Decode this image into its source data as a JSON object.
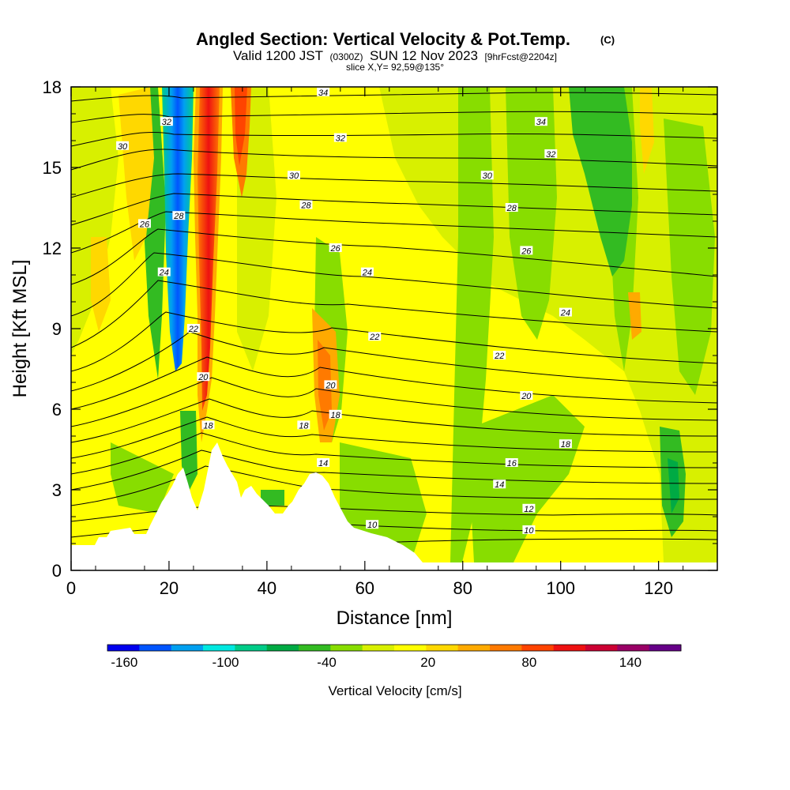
{
  "chart_data": {
    "type": "heatmap",
    "title": "Angled Section: Vertical Velocity & Pot.Temp.",
    "title_mark": "(C)",
    "subtitle_parts": [
      "Valid 1200 JST",
      "(0300Z)",
      "SUN 12 Nov 2023",
      "[9hrFcst@2204z]"
    ],
    "slice_text": "slice X,Y= 92,59@135°",
    "xlabel": "Distance [nm]",
    "ylabel": "Height [Kft MSL]",
    "xlim": [
      0,
      132
    ],
    "ylim": [
      0,
      18
    ],
    "x_ticks": [
      0,
      20,
      40,
      60,
      80,
      100,
      120
    ],
    "x_tick_labels": [
      "0",
      "20",
      "40",
      "60",
      "80",
      "100",
      "120"
    ],
    "y_ticks": [
      0,
      3,
      6,
      9,
      12,
      15,
      18
    ],
    "y_tick_labels": [
      "0",
      "3",
      "6",
      "9",
      "12",
      "15",
      "18"
    ],
    "colorbar": {
      "title": "Vertical Velocity [cm/s]",
      "min": -170,
      "max": 170,
      "labels": [
        "-160",
        "-100",
        "-40",
        "20",
        "80",
        "140"
      ],
      "label_values": [
        -160,
        -100,
        -40,
        20,
        80,
        140
      ],
      "colors": [
        "#0000ee",
        "#0055ff",
        "#00a0f0",
        "#00e8e0",
        "#00cc88",
        "#00aa44",
        "#33bb22",
        "#88dd00",
        "#d8f000",
        "#ffff00",
        "#ffd800",
        "#ffaa00",
        "#ff7a00",
        "#ff4400",
        "#ee1111",
        "#cc0033",
        "#990066",
        "#660088"
      ]
    },
    "contour_labels": [
      {
        "text": "34",
        "x": 51.5,
        "y": 17.8
      },
      {
        "text": "32",
        "x": 19.5,
        "y": 16.7
      },
      {
        "text": "30",
        "x": 10.5,
        "y": 15.8
      },
      {
        "text": "32",
        "x": 55.0,
        "y": 16.1
      },
      {
        "text": "34",
        "x": 96.0,
        "y": 16.7
      },
      {
        "text": "32",
        "x": 98.0,
        "y": 15.5
      },
      {
        "text": "30",
        "x": 45.5,
        "y": 14.7
      },
      {
        "text": "30",
        "x": 85.0,
        "y": 14.7
      },
      {
        "text": "28",
        "x": 48.0,
        "y": 13.6
      },
      {
        "text": "28",
        "x": 90.0,
        "y": 13.5
      },
      {
        "text": "28",
        "x": 22.0,
        "y": 13.2
      },
      {
        "text": "26",
        "x": 15.0,
        "y": 12.9
      },
      {
        "text": "26",
        "x": 54.0,
        "y": 12.0
      },
      {
        "text": "26",
        "x": 93.0,
        "y": 11.9
      },
      {
        "text": "24",
        "x": 19.0,
        "y": 11.1
      },
      {
        "text": "24",
        "x": 60.5,
        "y": 11.1
      },
      {
        "text": "24",
        "x": 101.0,
        "y": 9.6
      },
      {
        "text": "22",
        "x": 25.0,
        "y": 9.0
      },
      {
        "text": "22",
        "x": 62.0,
        "y": 8.7
      },
      {
        "text": "22",
        "x": 87.5,
        "y": 8.0
      },
      {
        "text": "20",
        "x": 27.0,
        "y": 7.2
      },
      {
        "text": "20",
        "x": 53.0,
        "y": 6.9
      },
      {
        "text": "20",
        "x": 93.0,
        "y": 6.5
      },
      {
        "text": "18",
        "x": 28.0,
        "y": 5.4
      },
      {
        "text": "18",
        "x": 47.5,
        "y": 5.4
      },
      {
        "text": "18",
        "x": 54.0,
        "y": 5.8
      },
      {
        "text": "18",
        "x": 101.0,
        "y": 4.7
      },
      {
        "text": "16",
        "x": 90.0,
        "y": 4.0
      },
      {
        "text": "14",
        "x": 51.5,
        "y": 4.0
      },
      {
        "text": "14",
        "x": 87.5,
        "y": 3.2
      },
      {
        "text": "12",
        "x": 93.5,
        "y": 2.3
      },
      {
        "text": "10",
        "x": 93.5,
        "y": 1.5
      },
      {
        "text": "10",
        "x": 61.5,
        "y": 1.7
      }
    ]
  }
}
